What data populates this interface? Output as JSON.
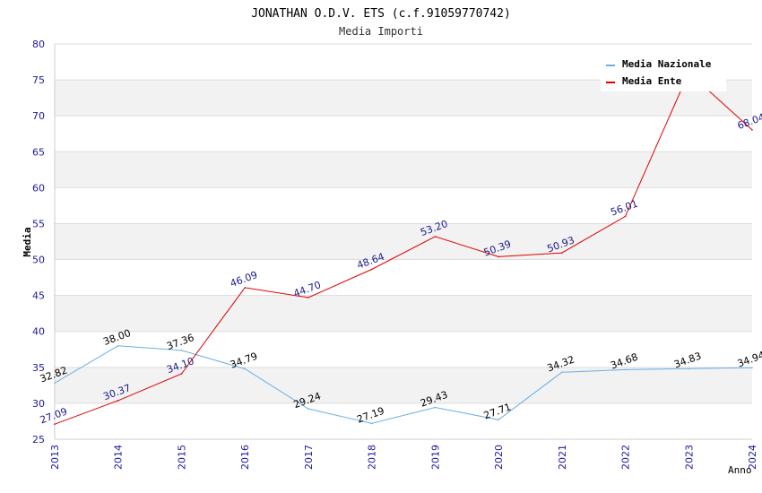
{
  "chart_data": {
    "type": "line",
    "title": "JONATHAN O.D.V. ETS (c.f.91059770742)",
    "subtitle": "Media Importi",
    "xlabel": "Anno",
    "ylabel": "Media",
    "ylim": [
      25,
      80
    ],
    "yticks": [
      "25",
      "30",
      "35",
      "40",
      "45",
      "50",
      "55",
      "60",
      "65",
      "70",
      "75",
      "80"
    ],
    "categories": [
      "2013",
      "2014",
      "2015",
      "2016",
      "2017",
      "2018",
      "2019",
      "2020",
      "2021",
      "2022",
      "2023",
      "2024"
    ],
    "legend_position": "top-right",
    "grid": true,
    "series": [
      {
        "name": "Media Nazionale",
        "color": "#6aaee6",
        "label_color": "#000000",
        "values": [
          32.82,
          38.0,
          37.36,
          34.79,
          29.24,
          27.19,
          29.43,
          27.71,
          34.32,
          34.68,
          34.83,
          34.94
        ],
        "labels": [
          "32.82",
          "38.00",
          "37.36",
          "34.79",
          "29.24",
          "27.19",
          "29.43",
          "27.71",
          "34.32",
          "34.68",
          "34.83",
          "34.94"
        ]
      },
      {
        "name": "Media Ente",
        "color": "#e00000",
        "label_color": "#1a1a8c",
        "values": [
          27.09,
          30.37,
          34.1,
          46.09,
          44.7,
          48.64,
          53.2,
          50.39,
          50.93,
          56.01,
          76.0,
          68.04
        ],
        "labels": [
          "27.09",
          "30.37",
          "34.10",
          "46.09",
          "44.70",
          "48.64",
          "53.20",
          "50.39",
          "50.93",
          "56.01",
          "",
          "68.04"
        ]
      }
    ]
  }
}
